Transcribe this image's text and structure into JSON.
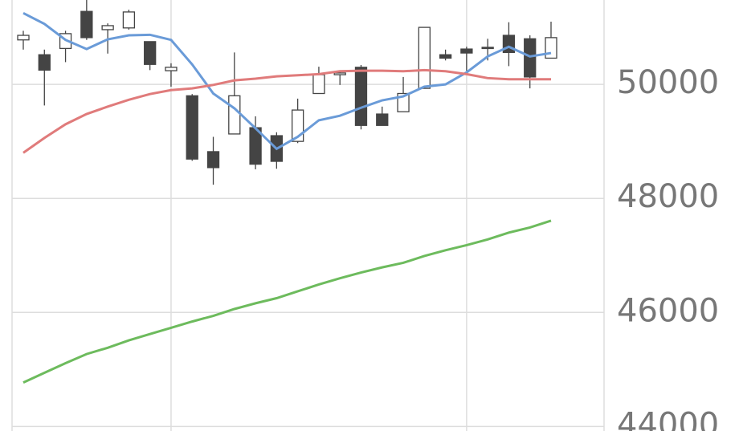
{
  "chart_data": {
    "type": "candlestick",
    "categories": [
      null,
      null,
      null,
      null,
      null,
      null,
      null,
      null,
      null,
      null,
      null,
      null,
      null,
      null,
      null,
      null,
      null,
      null,
      null,
      null,
      null,
      null,
      null,
      null,
      null,
      null
    ],
    "open": [
      50780,
      50520,
      50630,
      51280,
      50960,
      50990,
      50750,
      50240,
      49800,
      48820,
      49130,
      49240,
      49100,
      49000,
      49840,
      50170,
      50300,
      49480,
      49520,
      49930,
      50520,
      50620,
      50650,
      50860,
      50800,
      50460
    ],
    "high": [
      50940,
      50610,
      50940,
      51480,
      51070,
      51310,
      50750,
      50370,
      49830,
      49080,
      50560,
      49440,
      49160,
      49750,
      50310,
      50240,
      50340,
      49610,
      50130,
      51000,
      50610,
      50660,
      50800,
      51090,
      50860,
      51100
    ],
    "low": [
      50610,
      49630,
      50390,
      50780,
      50540,
      50960,
      50250,
      49960,
      48660,
      48240,
      49130,
      48510,
      48520,
      48970,
      49840,
      49990,
      49210,
      49280,
      49520,
      49930,
      50420,
      50240,
      50420,
      50320,
      49930,
      50460
    ],
    "close": [
      50860,
      50250,
      50890,
      50820,
      51030,
      51270,
      50350,
      50300,
      48690,
      48540,
      49800,
      48600,
      48650,
      49550,
      50170,
      50200,
      49280,
      49280,
      49840,
      51000,
      50460,
      50550,
      50630,
      50560,
      50130,
      50820
    ],
    "up_color": "#ffffff",
    "down_color": "#444444",
    "series": [
      {
        "color": "#6a9bd8",
        "values": [
          51250,
          51060,
          50780,
          50620,
          50790,
          50860,
          50870,
          50780,
          50350,
          49840,
          49580,
          49230,
          48870,
          49080,
          49370,
          49450,
          49590,
          49720,
          49790,
          49960,
          50000,
          50210,
          50490,
          50660,
          50490,
          50550
        ]
      },
      {
        "color": "#e07b7b",
        "values": [
          48800,
          49060,
          49300,
          49480,
          49610,
          49730,
          49830,
          49900,
          49930,
          49990,
          50070,
          50100,
          50140,
          50160,
          50180,
          50230,
          50240,
          50240,
          50230,
          50250,
          50230,
          50180,
          50110,
          50090,
          50090,
          50090
        ]
      },
      {
        "color": "#6dbb5d",
        "values": [
          44770,
          44940,
          45110,
          45270,
          45380,
          45510,
          45620,
          45730,
          45840,
          45940,
          46060,
          46160,
          46250,
          46370,
          46490,
          46600,
          46700,
          46790,
          46870,
          46990,
          47090,
          47180,
          47280,
          47400,
          47490,
          47610
        ]
      }
    ],
    "ylim": [
      43920,
      51480
    ],
    "yticks": [
      44000,
      46000,
      48000,
      50000
    ],
    "xticks": [
      7,
      21
    ],
    "grid": true
  }
}
